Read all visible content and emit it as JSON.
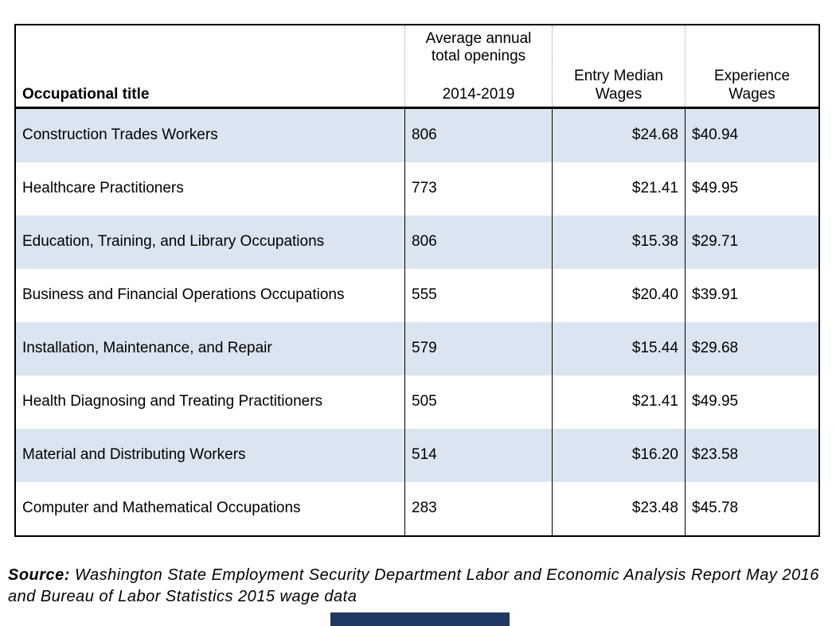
{
  "table": {
    "headers": {
      "occupational_title": "Occupational title",
      "openings_line1": "Average annual",
      "openings_line2": "total openings",
      "openings_line3": "2014-2019",
      "entry_line1": "Entry Median",
      "entry_line2": "Wages",
      "experience_line1": "Experience",
      "experience_line2": "Wages"
    },
    "rows": [
      {
        "title": "Construction Trades Workers",
        "openings": "806",
        "entry": "$24.68",
        "experience": "$40.94"
      },
      {
        "title": "Healthcare Practitioners",
        "openings": "773",
        "entry": "$21.41",
        "experience": "$49.95"
      },
      {
        "title": "Education, Training, and Library Occupations",
        "openings": "806",
        "entry": "$15.38",
        "experience": "$29.71"
      },
      {
        "title": "Business and Financial Operations Occupations",
        "openings": "555",
        "entry": "$20.40",
        "experience": "$39.91"
      },
      {
        "title": "Installation, Maintenance, and Repair",
        "openings": "579",
        "entry": "$15.44",
        "experience": "$29.68"
      },
      {
        "title": "Health Diagnosing and Treating Practitioners",
        "openings": "505",
        "entry": "$21.41",
        "experience": "$49.95"
      },
      {
        "title": "Material and Distributing Workers",
        "openings": "514",
        "entry": "$16.20",
        "experience": "$23.58"
      },
      {
        "title": "Computer and Mathematical Occupations",
        "openings": "283",
        "entry": "$23.48",
        "experience": "$45.78"
      }
    ]
  },
  "source": {
    "label": "Source:",
    "text": " Washington State Employment Security Department Labor and Economic Analysis Report May 2016 and Bureau of Labor Statistics 2015 wage data"
  },
  "colors": {
    "row_shaded": "#dbe5f1",
    "border": "#000000",
    "accent_bar": "#1f3864"
  },
  "chart_data": {
    "type": "table",
    "title": "",
    "columns": [
      "Occupational title",
      "Average annual total openings 2014-2019",
      "Entry Median Wages",
      "Experience Wages"
    ],
    "rows": [
      [
        "Construction Trades Workers",
        806,
        "$24.68",
        "$40.94"
      ],
      [
        "Healthcare Practitioners",
        773,
        "$21.41",
        "$49.95"
      ],
      [
        "Education, Training, and Library Occupations",
        806,
        "$15.38",
        "$29.71"
      ],
      [
        "Business and Financial Operations Occupations",
        555,
        "$20.40",
        "$39.91"
      ],
      [
        "Installation, Maintenance, and Repair",
        579,
        "$15.44",
        "$29.68"
      ],
      [
        "Health Diagnosing and Treating Practitioners",
        505,
        "$21.41",
        "$49.95"
      ],
      [
        "Material and Distributing Workers",
        514,
        "$16.20",
        "$23.58"
      ],
      [
        "Computer and Mathematical Occupations",
        283,
        "$23.48",
        "$45.78"
      ]
    ],
    "source": "Washington State Employment Security Department Labor and Economic Analysis Report May 2016 and Bureau of Labor Statistics 2015 wage data",
    "layout": {
      "shaded_rows": "odd rows light blue",
      "alignment": {
        "title": "left",
        "openings": "left",
        "entry_median_wages": "right",
        "experience_wages": "left"
      }
    }
  }
}
